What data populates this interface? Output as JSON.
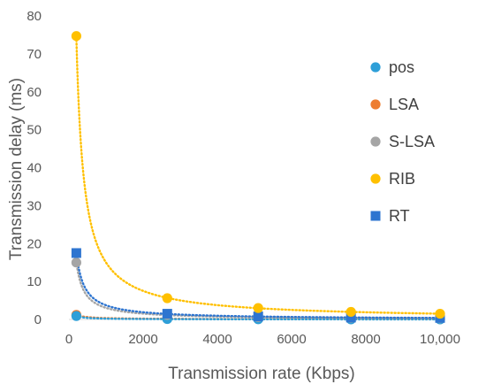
{
  "chart_data": {
    "type": "scatter",
    "title": "",
    "xlabel": "Transmission rate (Kbps)",
    "ylabel": "Transmission delay (ms)",
    "xlim": [
      0,
      10000
    ],
    "ylim": [
      0,
      80
    ],
    "x_ticks": [
      0,
      2000,
      4000,
      6000,
      8000,
      10000
    ],
    "x_tick_labels": [
      "0",
      "2000",
      "4000",
      "6000",
      "8000",
      "10,000"
    ],
    "y_ticks": [
      0,
      10,
      20,
      30,
      40,
      50,
      60,
      70,
      80
    ],
    "y_tick_labels": [
      "0",
      "10",
      "20",
      "30",
      "40",
      "50",
      "60",
      "70",
      "80"
    ],
    "grid": false,
    "legend_position": "right",
    "trendline": "power",
    "series": [
      {
        "name": "pos",
        "marker": "circle",
        "color": "#2E9FD8",
        "points": [
          [
            200,
            0.9
          ],
          [
            2650,
            0.1
          ],
          [
            5100,
            0.05
          ],
          [
            7600,
            0.03
          ],
          [
            10000,
            0.02
          ]
        ]
      },
      {
        "name": "LSA",
        "marker": "circle",
        "color": "#ED7D31",
        "points": [
          [
            200,
            1.2
          ],
          [
            2650,
            0.2
          ],
          [
            5100,
            0.1
          ],
          [
            7600,
            0.07
          ],
          [
            10000,
            0.05
          ]
        ]
      },
      {
        "name": "S-LSA",
        "marker": "circle",
        "color": "#A5A5A5",
        "points": [
          [
            200,
            15.0
          ],
          [
            2650,
            1.2
          ],
          [
            5100,
            0.6
          ],
          [
            7600,
            0.4
          ],
          [
            10000,
            0.3
          ]
        ]
      },
      {
        "name": "RIB",
        "marker": "circle",
        "color": "#FFC000",
        "points": [
          [
            200,
            74.7
          ],
          [
            2650,
            5.6
          ],
          [
            5100,
            3.0
          ],
          [
            7600,
            2.0
          ],
          [
            10000,
            1.5
          ]
        ]
      },
      {
        "name": "RT",
        "marker": "square",
        "color": "#2E75D0",
        "points": [
          [
            200,
            17.5
          ],
          [
            2650,
            1.5
          ],
          [
            5100,
            0.8
          ],
          [
            7600,
            0.5
          ],
          [
            10000,
            0.4
          ]
        ]
      }
    ]
  }
}
